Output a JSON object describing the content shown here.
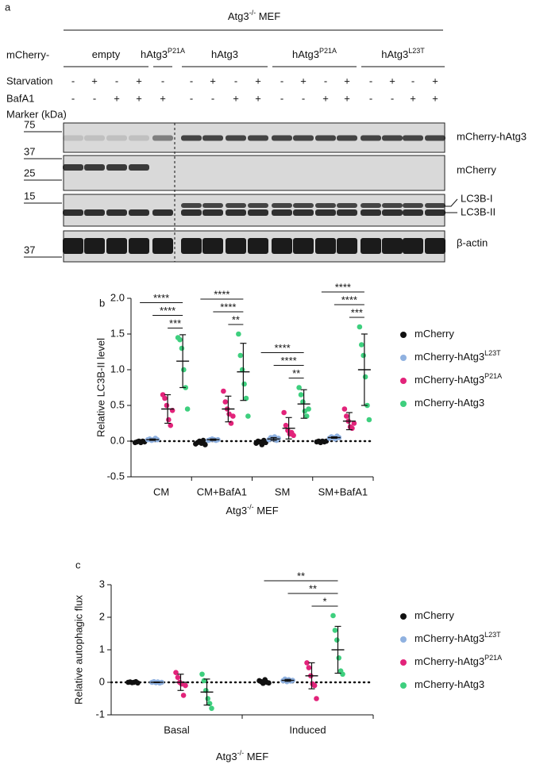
{
  "panel_a": {
    "label": "a",
    "title": {
      "text": "Atg3",
      "sup": "-/-",
      "suffix": " MEF"
    },
    "row_label": "mCherry-",
    "groups": [
      {
        "text": "empty"
      },
      {
        "text": "hAtg3",
        "sup": "P21A"
      },
      {
        "text": "hAtg3"
      },
      {
        "text": "hAtg3",
        "sup": "P21A"
      },
      {
        "text": "hAtg3",
        "sup": "L23T"
      }
    ],
    "conditions": [
      {
        "label": "Starvation",
        "signs": [
          "-",
          "+",
          "-",
          "+",
          "-",
          "-",
          "+",
          "-",
          "+",
          "-",
          "+",
          "-",
          "+",
          "-",
          "+",
          "-",
          "+"
        ]
      },
      {
        "label": "BafA1",
        "signs": [
          "-",
          "-",
          "+",
          "+",
          "+",
          "-",
          "-",
          "+",
          "+",
          "-",
          "-",
          "+",
          "+",
          "-",
          "-",
          "+",
          "+"
        ]
      }
    ],
    "marker_header": "Marker (kDa)",
    "markers": [
      75,
      37,
      25,
      15,
      37
    ],
    "bands": [
      "mCherry-hAtg3",
      "mCherry",
      "LC3B-I",
      "LC3B-II",
      "β-actin"
    ]
  },
  "chart_data": [
    {
      "type": "strip",
      "panel_label": "b",
      "y_label": "Relative LC3B-II level",
      "x_label": {
        "text": "Atg3",
        "sup": "-/-",
        "suffix": " MEF"
      },
      "categories": [
        "CM",
        "CM+BafA1",
        "SM",
        "SM+BafA1"
      ],
      "ylim": [
        -0.5,
        2.0
      ],
      "yticks": [
        -0.5,
        {
          "value": 0,
          "label": "0.0"
        },
        0.5,
        {
          "value": 1,
          "label": "1.0"
        },
        1.5,
        {
          "value": 2,
          "label": "2.0"
        }
      ],
      "legend": "right",
      "series": [
        {
          "name": {
            "text": "mCherry"
          },
          "color": "#111111",
          "points": [
            [
              -0.02,
              -0.01,
              0,
              -0.02,
              0,
              -0.01
            ],
            [
              -0.04,
              -0.02,
              0,
              -0.03,
              0.01,
              -0.05
            ],
            [
              -0.03,
              0,
              -0.01,
              -0.05,
              0.01,
              -0.02
            ],
            [
              -0.01,
              0,
              -0.02,
              0,
              -0.01,
              0
            ]
          ],
          "values": [
            -0.01,
            -0.02,
            -0.02,
            -0.01
          ],
          "errors": [
            0.01,
            0.02,
            0.02,
            0.01
          ]
        },
        {
          "name": {
            "text": "mCherry-hAtg3",
            "sup": "L23T"
          },
          "color": "#8fb1e0",
          "points": [
            [
              0.02,
              0.03,
              0.01,
              0.02,
              0.04,
              0.02
            ],
            [
              0.01,
              0.02,
              0.03,
              0.02,
              0.01,
              0.02
            ],
            [
              0.02,
              0.05,
              0.03,
              0.06,
              0.01,
              0.04
            ],
            [
              0.04,
              0.06,
              0.05,
              0.03,
              0.07,
              0.05
            ]
          ],
          "values": [
            0.02,
            0.02,
            0.03,
            0.05
          ],
          "errors": [
            0.01,
            0.01,
            0.02,
            0.01
          ]
        },
        {
          "name": {
            "text": "mCherry-hAtg3",
            "sup": "P21A"
          },
          "color": "#e2237a",
          "points": [
            [
              0.65,
              0.6,
              0.5,
              0.3,
              0.22,
              0.43
            ],
            [
              0.7,
              0.55,
              0.45,
              0.38,
              0.25,
              0.35
            ],
            [
              0.4,
              0.22,
              0.15,
              0.1,
              0.12,
              0.08
            ],
            [
              0.45,
              0.35,
              0.28,
              0.2,
              0.18,
              0.25
            ]
          ],
          "values": [
            0.45,
            0.45,
            0.18,
            0.28
          ],
          "errors": [
            0.2,
            0.18,
            0.15,
            0.12
          ]
        },
        {
          "name": {
            "text": "mCherry-hAtg3"
          },
          "color": "#3ecf7e",
          "points": [
            [
              1.45,
              1.42,
              1.3,
              1.0,
              0.75,
              0.45
            ],
            [
              1.5,
              1.2,
              1.0,
              0.8,
              0.6,
              0.35
            ],
            [
              0.75,
              0.65,
              0.55,
              0.42,
              0.35,
              0.45
            ],
            [
              1.6,
              1.35,
              1.2,
              0.9,
              0.5,
              0.3
            ]
          ],
          "values": [
            1.12,
            0.97,
            0.52,
            1.0
          ],
          "errors": [
            0.37,
            0.4,
            0.2,
            0.5
          ]
        }
      ],
      "significance": [
        [
          "****",
          "****",
          "***"
        ],
        [
          "****",
          "****",
          "**"
        ],
        [
          "****",
          "****",
          "**"
        ],
        [
          "****",
          "****",
          "***"
        ]
      ]
    },
    {
      "type": "strip",
      "panel_label": "c",
      "y_label": "Relative autophagic flux",
      "x_label": {
        "text": "Atg3",
        "sup": "-/-",
        "suffix": " MEF"
      },
      "categories": [
        "Basal",
        "Induced"
      ],
      "ylim": [
        -1,
        3
      ],
      "yticks": [
        -1,
        0,
        1,
        2,
        3
      ],
      "legend": "right",
      "series": [
        {
          "name": {
            "text": "mCherry"
          },
          "color": "#111111",
          "points": [
            [
              0,
              0.01,
              -0.01,
              0,
              0.02,
              -0.02
            ],
            [
              0.05,
              0.02,
              -0.03,
              0.08,
              0,
              -0.02
            ]
          ],
          "values": [
            0,
            0.02
          ],
          "errors": [
            0.01,
            0.04
          ]
        },
        {
          "name": {
            "text": "mCherry-hAtg3",
            "sup": "L23T"
          },
          "color": "#8fb1e0",
          "points": [
            [
              0,
              0.02,
              -0.01,
              0.01,
              -0.02,
              0
            ],
            [
              0.05,
              0.1,
              0.02,
              0.08,
              0.04,
              0.06
            ]
          ],
          "values": [
            0,
            0.06
          ],
          "errors": [
            0.01,
            0.03
          ]
        },
        {
          "name": {
            "text": "mCherry-hAtg3",
            "sup": "P21A"
          },
          "color": "#e2237a",
          "points": [
            [
              0.3,
              0.15,
              0,
              -0.05,
              -0.4,
              -0.1
            ],
            [
              0.6,
              0.45,
              0.2,
              -0.05,
              -0.1,
              -0.5
            ]
          ],
          "values": [
            0,
            0.2
          ],
          "errors": [
            0.25,
            0.4
          ]
        },
        {
          "name": {
            "text": "mCherry-hAtg3"
          },
          "color": "#3ecf7e",
          "points": [
            [
              0.25,
              0.05,
              -0.25,
              -0.5,
              -0.65,
              -0.8
            ],
            [
              2.05,
              1.6,
              1.3,
              0.75,
              0.35,
              0.25
            ]
          ],
          "values": [
            -0.3,
            1.0
          ],
          "errors": [
            0.4,
            0.72
          ]
        }
      ],
      "significance": [
        [],
        [
          "**",
          "**",
          "*"
        ]
      ]
    }
  ]
}
